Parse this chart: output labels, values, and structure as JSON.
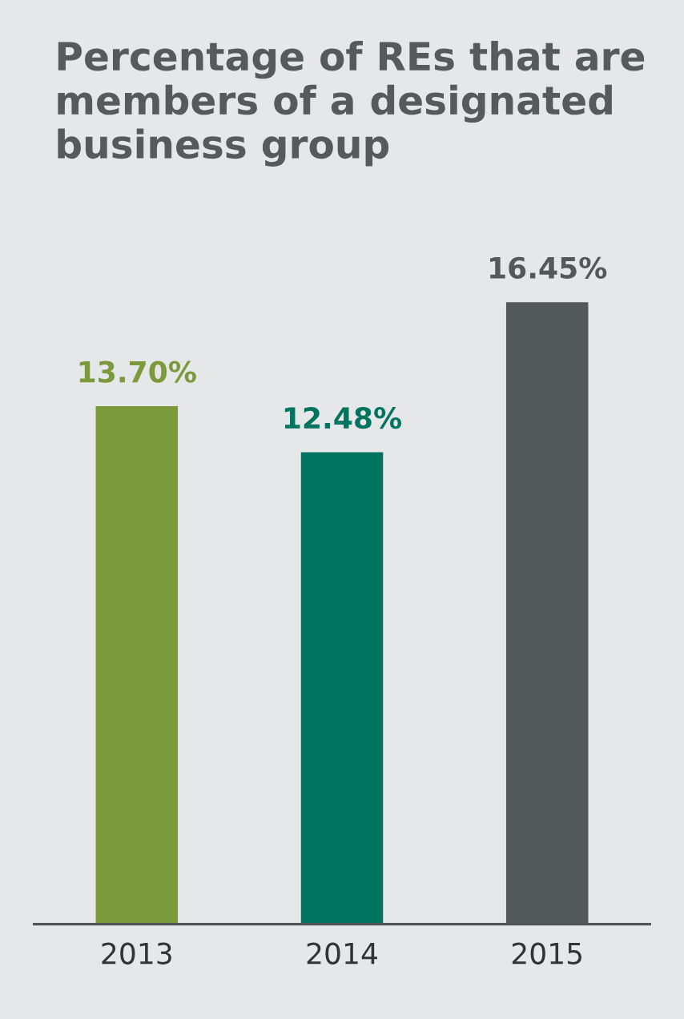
{
  "chart_data": {
    "type": "bar",
    "title": "Percentage of REs that are members of a designated business group",
    "categories": [
      "2013",
      "2014",
      "2015"
    ],
    "values": [
      13.7,
      12.48,
      16.45
    ],
    "colors": [
      "#7a9a3c",
      "#00745f",
      "#53585a"
    ],
    "value_labels": [
      "13.70%",
      "12.48%",
      "16.45%"
    ],
    "tick_labels": "x",
    "grid": false,
    "legend": false
  }
}
